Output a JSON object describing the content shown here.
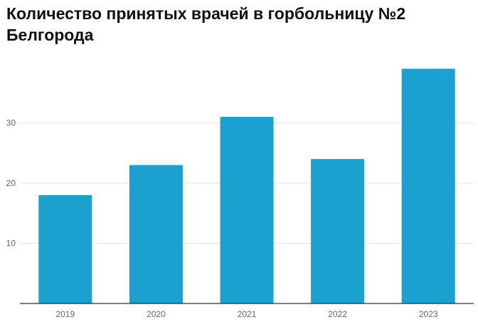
{
  "chart_data": {
    "type": "bar",
    "title": "Количество принятых врачей в горбольницу №2 Белгорода",
    "xlabel": "",
    "ylabel": "",
    "categories": [
      "2019",
      "2020",
      "2021",
      "2022",
      "2023"
    ],
    "values": [
      18,
      23,
      31,
      24,
      39
    ],
    "ylim": [
      0,
      40
    ],
    "yticks": [
      10,
      20,
      30
    ],
    "grid": true,
    "legend": "none",
    "colors": {
      "bar": "#1aa1d0",
      "grid": "#e6e6e6",
      "axis": "#333333",
      "tick_text": "#666666",
      "title_text": "#111111"
    }
  }
}
